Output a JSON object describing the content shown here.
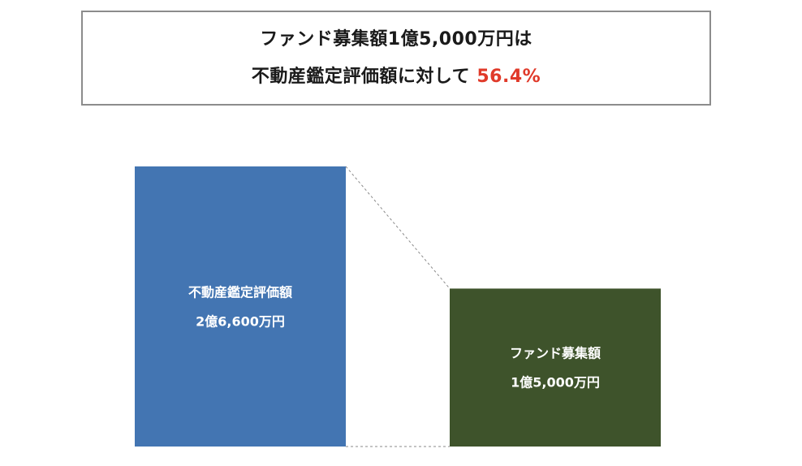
{
  "headline": {
    "line1": "ファンド募集額1億5,000万円は",
    "line2_prefix": "不動産鑑定評価額に対して",
    "line2_ratio": "56.4%"
  },
  "colors": {
    "appraisal_bar": "#4375b2",
    "fund_bar": "#3e532b",
    "ratio_text": "#e03a2a",
    "box_border": "#8c8c8c",
    "connector": "#8a8a8a"
  },
  "chart_data": {
    "type": "bar",
    "title": "ファンド募集額1億5,000万円は 不動産鑑定評価額に対して 56.4%",
    "categories": [
      "不動産鑑定評価額",
      "ファンド募集額"
    ],
    "values": [
      26600,
      15000
    ],
    "value_labels": [
      "2億6,600万円",
      "1億5,000万円"
    ],
    "unit": "万円",
    "ratio_percent": 56.4,
    "ylim": [
      0,
      26600
    ],
    "grid": false,
    "legend": "none"
  }
}
